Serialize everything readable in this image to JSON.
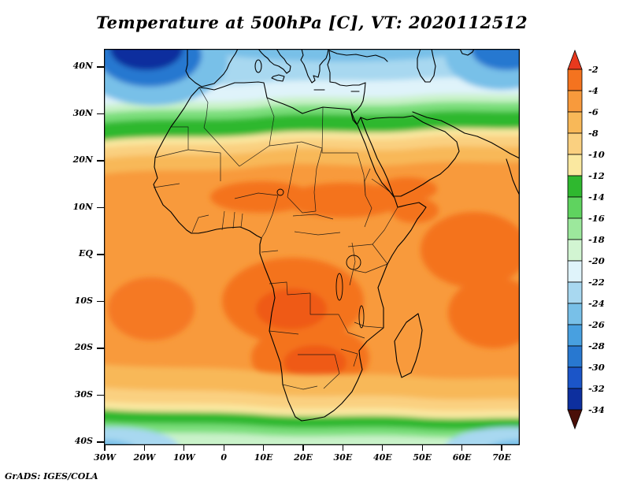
{
  "title": "Temperature at 500hPa [C], VT: 2020112512",
  "credit": "GrADS: IGES/COLA",
  "axes": {
    "lat_ticks": [
      "40N",
      "30N",
      "20N",
      "10N",
      "EQ",
      "10S",
      "20S",
      "30S",
      "40S"
    ],
    "lon_ticks": [
      "30W",
      "20W",
      "10W",
      "0",
      "10E",
      "20E",
      "30E",
      "40E",
      "50E",
      "60E",
      "70E"
    ]
  },
  "colorbar": {
    "labels": [
      "-2",
      "-4",
      "-6",
      "-8",
      "-10",
      "-12",
      "-14",
      "-16",
      "-18",
      "-20",
      "-22",
      "-24",
      "-26",
      "-28",
      "-30",
      "-32",
      "-34"
    ],
    "cap_top_color": "#e8391e",
    "cap_bottom_color": "#4a0f08",
    "segment_colors": [
      "#f4731f",
      "#f89a3c",
      "#f8b858",
      "#fad080",
      "#fae8a0",
      "#2fb82f",
      "#5fd35f",
      "#9ce89c",
      "#d2f5d2",
      "#dff3fa",
      "#a8d8f0",
      "#78c0e8",
      "#48a0e0",
      "#2878d0",
      "#1b55c8",
      "#0d2f9e"
    ]
  },
  "chart_data": {
    "type": "heatmap",
    "title": "Temperature at 500hPa [C], VT: 2020112512",
    "variable": "Temperature",
    "level": "500 hPa",
    "units": "C",
    "valid_time": "2020112512",
    "projection": "latlon",
    "lon_range": [
      -30,
      75
    ],
    "lat_range": [
      -40,
      44
    ],
    "xticks": [
      "30W",
      "20W",
      "10W",
      "0",
      "10E",
      "20E",
      "30E",
      "40E",
      "50E",
      "60E",
      "70E"
    ],
    "yticks": [
      "40N",
      "30N",
      "20N",
      "10N",
      "EQ",
      "10S",
      "20S",
      "30S",
      "40S"
    ],
    "legend_position": "right",
    "grid": false,
    "contour_interval": 2,
    "contour_levels": [
      -34,
      -32,
      -30,
      -28,
      -26,
      -24,
      -22,
      -20,
      -18,
      -16,
      -14,
      -12,
      -10,
      -8,
      -6,
      -4,
      -2
    ],
    "palette_warm_to_cold": [
      "#e8391e",
      "#f4731f",
      "#f89a3c",
      "#f8b858",
      "#fad080",
      "#fae8a0",
      "#2fb82f",
      "#5fd35f",
      "#9ce89c",
      "#d2f5d2",
      "#dff3fa",
      "#a8d8f0",
      "#78c0e8",
      "#48a0e0",
      "#2878d0",
      "#1b55c8",
      "#0d2f9e",
      "#4a0f08"
    ],
    "sample_grid": {
      "lons": [
        -30,
        -20,
        -10,
        0,
        10,
        20,
        30,
        40,
        50,
        60,
        70
      ],
      "lats": [
        40,
        30,
        20,
        10,
        0,
        -10,
        -20,
        -30,
        -40
      ],
      "values_c": [
        [
          -24,
          -27,
          -22,
          -20,
          -19,
          -19,
          -20,
          -18,
          -17,
          -21,
          -25
        ],
        [
          -13,
          -12,
          -12,
          -11,
          -11,
          -12,
          -11,
          -10,
          -11,
          -12,
          -13
        ],
        [
          -8,
          -8,
          -8,
          -7,
          -7,
          -7,
          -7,
          -7,
          -8,
          -8,
          -8
        ],
        [
          -6,
          -6,
          -6,
          -5,
          -5,
          -5,
          -5,
          -6,
          -5,
          -5,
          -6
        ],
        [
          -6,
          -6,
          -6,
          -5,
          -4,
          -4,
          -5,
          -5,
          -5,
          -4,
          -5
        ],
        [
          -5,
          -5,
          -6,
          -5,
          -4,
          -4,
          -4,
          -5,
          -5,
          -4,
          -4
        ],
        [
          -6,
          -6,
          -6,
          -5,
          -4,
          -4,
          -5,
          -5,
          -4,
          -4,
          -5
        ],
        [
          -9,
          -9,
          -9,
          -8,
          -8,
          -8,
          -9,
          -9,
          -8,
          -8,
          -9
        ],
        [
          -15,
          -14,
          -13,
          -13,
          -13,
          -14,
          -14,
          -15,
          -16,
          -15,
          -16
        ]
      ]
    },
    "map_overlays": [
      "Africa coastline",
      "country borders",
      "Madagascar",
      "Arabian Peninsula",
      "Mediterranean Europe coasts",
      "Caspian Sea",
      "African great lakes"
    ],
    "notable_features": [
      "Cold pool below -28C over the NE Atlantic near 20W 42N",
      "Secondary cold pool near 65E 42N",
      "Warm band -2 to -6C spanning tropical Africa and the Indian Ocean",
      "Green transition band (-12 to -16C) near 28N and 35S",
      "Warmest patches (-2 to -4C) over the Congo Basin, southern Africa and SW Indian Ocean"
    ]
  }
}
